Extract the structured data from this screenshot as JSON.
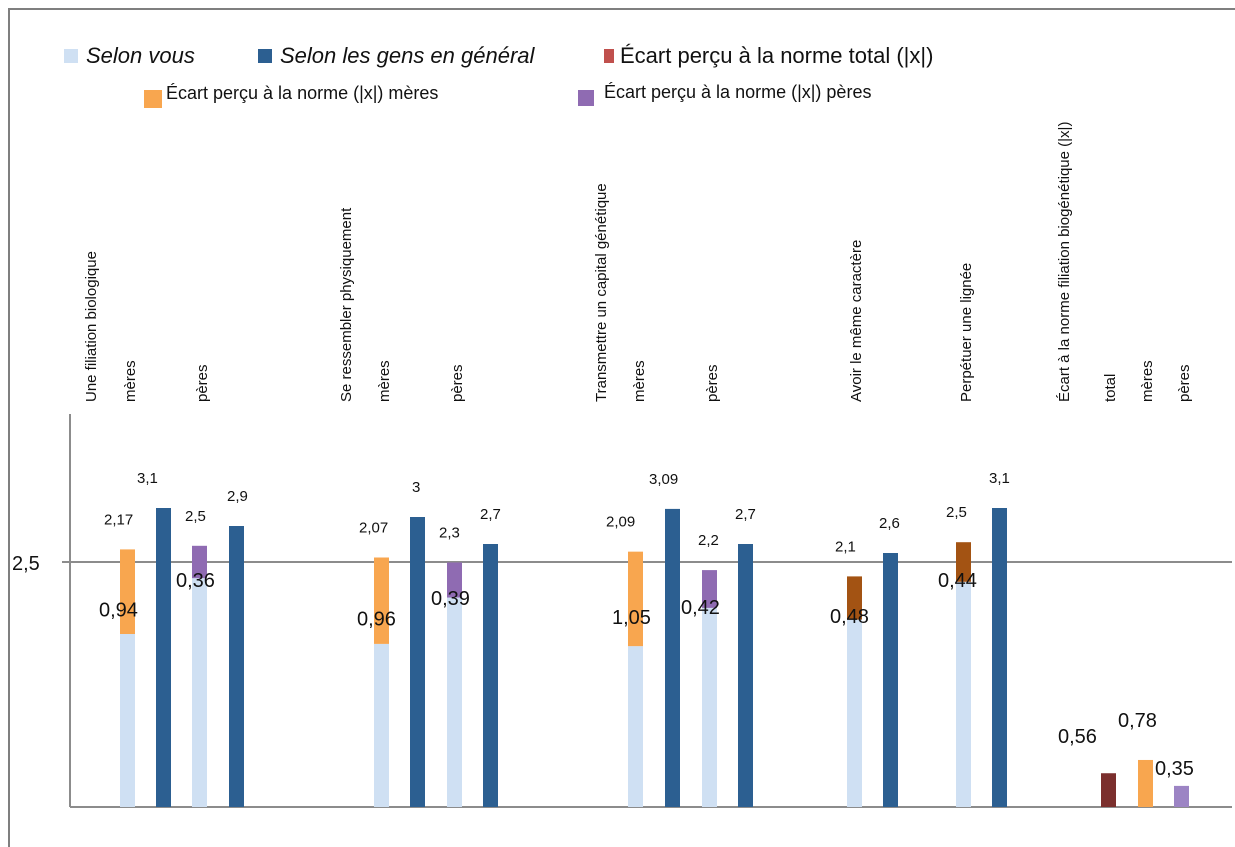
{
  "chart_data": {
    "type": "bar",
    "ytick_label": "2,5",
    "legend": [
      {
        "key": "selon_vous",
        "label": "Selon vous",
        "color": "#cfe0f3",
        "italic": true
      },
      {
        "key": "selon_gens",
        "label": "Selon les gens en général",
        "color": "#2c5f91",
        "italic": true
      },
      {
        "key": "ecart_total",
        "label": "Écart perçu à la norme total (|x|)",
        "color": "#c0504d",
        "italic": false
      },
      {
        "key": "ecart_meres",
        "label": "Écart perçu à la norme (|x|) mères",
        "color": "#f8a64f",
        "italic": false
      },
      {
        "key": "ecart_peres",
        "label": "Écart perçu à la norme (|x|) pères",
        "color": "#8f6bb2",
        "italic": false
      }
    ],
    "category_labels": [
      "Une filiation biologique",
      "Se ressembler physiquement",
      "Transmettre un capital génétique",
      "Avoir le même caractère",
      "Perpétuer une lignée",
      "Écart à la norme filiation biogénétique (|x|)"
    ],
    "group_labels": {
      "meres": "mères",
      "peres": "pères",
      "total": "total"
    },
    "groups": [
      {
        "category": 0,
        "group": "meres",
        "selon_vous": 2.17,
        "selon_vous_label": "2,17",
        "selon_gens": 3.1,
        "selon_gens_label": "3,1",
        "ecart": 0.94,
        "ecart_label": "0,94",
        "ecart_color": "#f8a64f"
      },
      {
        "category": 0,
        "group": "peres",
        "selon_vous": 2.5,
        "selon_vous_label": "2,5",
        "selon_gens": 2.9,
        "selon_gens_label": "2,9",
        "ecart": 0.36,
        "ecart_label": "0,36",
        "ecart_color": "#8f6bb2"
      },
      {
        "category": 1,
        "group": "meres",
        "selon_vous": 2.07,
        "selon_vous_label": "2,07",
        "selon_gens": 3.0,
        "selon_gens_label": "3",
        "ecart": 0.96,
        "ecart_label": "0,96",
        "ecart_color": "#f8a64f"
      },
      {
        "category": 1,
        "group": "peres",
        "selon_vous": 2.3,
        "selon_vous_label": "2,3",
        "selon_gens": 2.7,
        "selon_gens_label": "2,7",
        "ecart": 0.39,
        "ecart_label": "0,39",
        "ecart_color": "#8f6bb2"
      },
      {
        "category": 2,
        "group": "meres",
        "selon_vous": 2.09,
        "selon_vous_label": "2,09",
        "selon_gens": 3.09,
        "selon_gens_label": "3,09",
        "ecart": 1.05,
        "ecart_label": "1,05",
        "ecart_color": "#f8a64f"
      },
      {
        "category": 2,
        "group": "peres",
        "selon_vous": 2.2,
        "selon_vous_label": "2,2",
        "selon_gens": 2.7,
        "selon_gens_label": "2,7",
        "ecart": 0.42,
        "ecart_label": "0,42",
        "ecart_color": "#8f6bb2"
      },
      {
        "category": 3,
        "group": "all",
        "selon_vous": 2.1,
        "selon_vous_label": "2,1",
        "selon_gens": 2.6,
        "selon_gens_label": "2,6",
        "ecart": 0.48,
        "ecart_label": "0,48",
        "ecart_color": "#a35313"
      },
      {
        "category": 4,
        "group": "all",
        "selon_vous": 2.5,
        "selon_vous_label": "2,5",
        "selon_gens": 3.1,
        "selon_gens_label": "3,1",
        "ecart": 0.44,
        "ecart_label": "0,44",
        "ecart_color": "#a35313"
      }
    ],
    "summary": [
      {
        "label": "total",
        "value": 0.56,
        "value_label": "0,56",
        "color": "#7b2f2d"
      },
      {
        "label": "mères",
        "value": 0.78,
        "value_label": "0,78",
        "color": "#f8a64f"
      },
      {
        "label": "pères",
        "value": 0.35,
        "value_label": "0,35",
        "color": "#9c84c4"
      }
    ],
    "reference_line": 2.5,
    "grid": false
  }
}
